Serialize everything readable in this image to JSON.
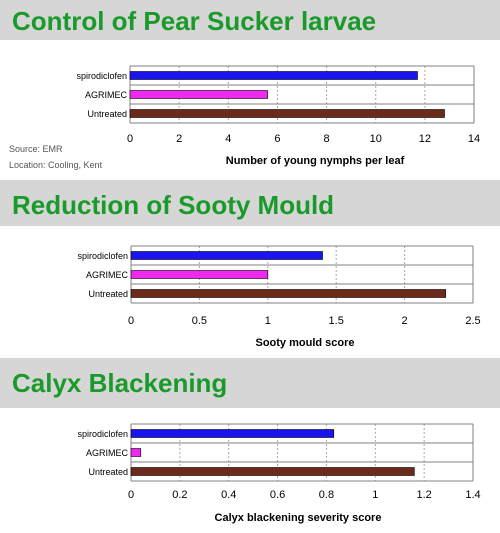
{
  "notes": {
    "source": "Source: EMR",
    "location": "Location: Cooling, Kent"
  },
  "colors": {
    "title_green": "#1a9a2a",
    "banner_gray": "#d6d6d6",
    "spirodiclofen": "#1a14f0",
    "agrimec": "#f028f0",
    "untreated": "#6b2a1a"
  },
  "chart_data": [
    {
      "type": "bar",
      "orientation": "horizontal",
      "title": "Control of Pear Sucker larvae",
      "xlabel": "Number of young nymphs per leaf",
      "ylabel": "",
      "categories": [
        "spirodiclofen",
        "AGRIMEC",
        "Untreated"
      ],
      "values": [
        11.7,
        5.6,
        12.8
      ],
      "xlim": [
        0,
        14
      ],
      "ticks": [
        "0",
        "2",
        "4",
        "6",
        "8",
        "10",
        "12",
        "14"
      ],
      "grid": true
    },
    {
      "type": "bar",
      "orientation": "horizontal",
      "title": "Reduction of Sooty Mould",
      "xlabel": "Sooty mould score",
      "ylabel": "",
      "categories": [
        "spirodiclofen",
        "AGRIMEC",
        "Untreated"
      ],
      "values": [
        1.4,
        1.0,
        2.3
      ],
      "xlim": [
        0,
        2.5
      ],
      "ticks": [
        "0",
        "0.5",
        "1",
        "1.5",
        "2",
        "2.5"
      ],
      "grid": true
    },
    {
      "type": "bar",
      "orientation": "horizontal",
      "title": "Calyx Blackening",
      "xlabel": "Calyx blackening severity score",
      "ylabel": "",
      "categories": [
        "spirodiclofen",
        "AGRIMEC",
        "Untreated"
      ],
      "values": [
        0.83,
        0.04,
        1.16
      ],
      "xlim": [
        0,
        1.4
      ],
      "ticks": [
        "0",
        "0.2",
        "0.4",
        "0.6",
        "0.8",
        "1",
        "1.2",
        "1.4"
      ],
      "grid": true
    }
  ]
}
